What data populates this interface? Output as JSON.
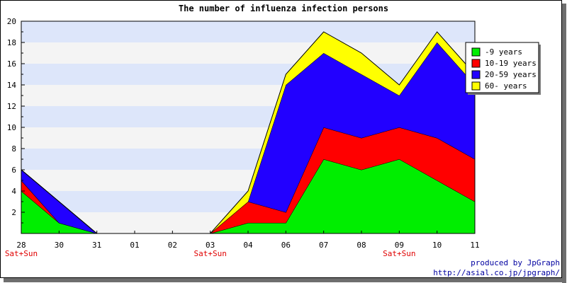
{
  "chart_data": {
    "type": "area",
    "stacked": true,
    "title": "The number of influenza infection persons",
    "categories": [
      "28",
      "30",
      "31",
      "01",
      "02",
      "03",
      "04",
      "06",
      "07",
      "08",
      "09",
      "10",
      "11"
    ],
    "weekend_marks": [
      {
        "category": "28",
        "label": "Sat+Sun"
      },
      {
        "category": "03",
        "label": "Sat+Sun"
      },
      {
        "category": "09",
        "label": "Sat+Sun"
      }
    ],
    "series": [
      {
        "name": "-9 years",
        "color": "#00ee00",
        "values": [
          4,
          1,
          0,
          0,
          0,
          0,
          1,
          1,
          7,
          6,
          7,
          5,
          3
        ]
      },
      {
        "name": "10-19 years",
        "color": "#ff0000",
        "values": [
          1,
          0,
          0,
          0,
          0,
          0,
          2,
          1,
          3,
          3,
          3,
          4,
          4
        ]
      },
      {
        "name": "20-59 years",
        "color": "#2200ff",
        "values": [
          1,
          2,
          0,
          0,
          0,
          0,
          0,
          12,
          7,
          6,
          3,
          9,
          7
        ]
      },
      {
        "name": "60- years",
        "color": "#ffff00",
        "values": [
          0,
          0,
          0,
          0,
          0,
          0,
          1,
          1,
          2,
          2,
          1,
          1,
          1
        ]
      }
    ],
    "ylim": [
      0,
      20
    ],
    "yticks": [
      2,
      4,
      6,
      8,
      10,
      12,
      14,
      16,
      18,
      20
    ],
    "grid_band_colors": [
      "#dde6fa",
      "#f4f4f4"
    ],
    "legend_position": "top-right"
  },
  "credit": {
    "line1": "produced by JpGraph",
    "line2": "http://asial.co.jp/jpgraph/"
  }
}
